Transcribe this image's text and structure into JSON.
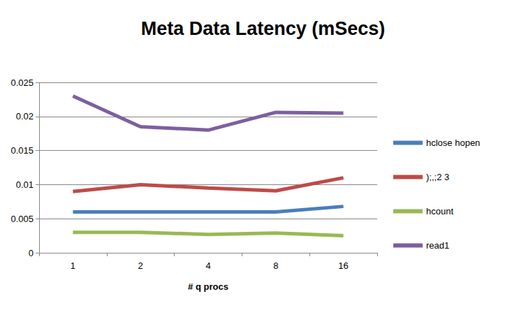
{
  "chart_data": {
    "type": "line",
    "title": "Meta Data Latency (mSecs)",
    "x_label": "# q procs",
    "categories": [
      "1",
      "2",
      "4",
      "8",
      "16"
    ],
    "series": [
      {
        "name": "hclose hopen",
        "color": "#4a7ebb",
        "values": [
          0.006,
          0.006,
          0.006,
          0.006,
          0.0068
        ]
      },
      {
        "name": ");,;2 3",
        "color": "#be4b48",
        "values": [
          0.009,
          0.01,
          0.0095,
          0.0091,
          0.011
        ]
      },
      {
        "name": "hcount",
        "color": "#98b954",
        "values": [
          0.003,
          0.003,
          0.0027,
          0.0029,
          0.0025
        ]
      },
      {
        "name": "read1",
        "color": "#7d5fa0",
        "values": [
          0.023,
          0.0185,
          0.018,
          0.0206,
          0.0205
        ]
      }
    ],
    "ylim": [
      0,
      0.025
    ],
    "yticks": [
      0,
      0.005,
      0.01,
      0.015,
      0.02,
      0.025
    ],
    "grid": true,
    "legend": "right"
  }
}
